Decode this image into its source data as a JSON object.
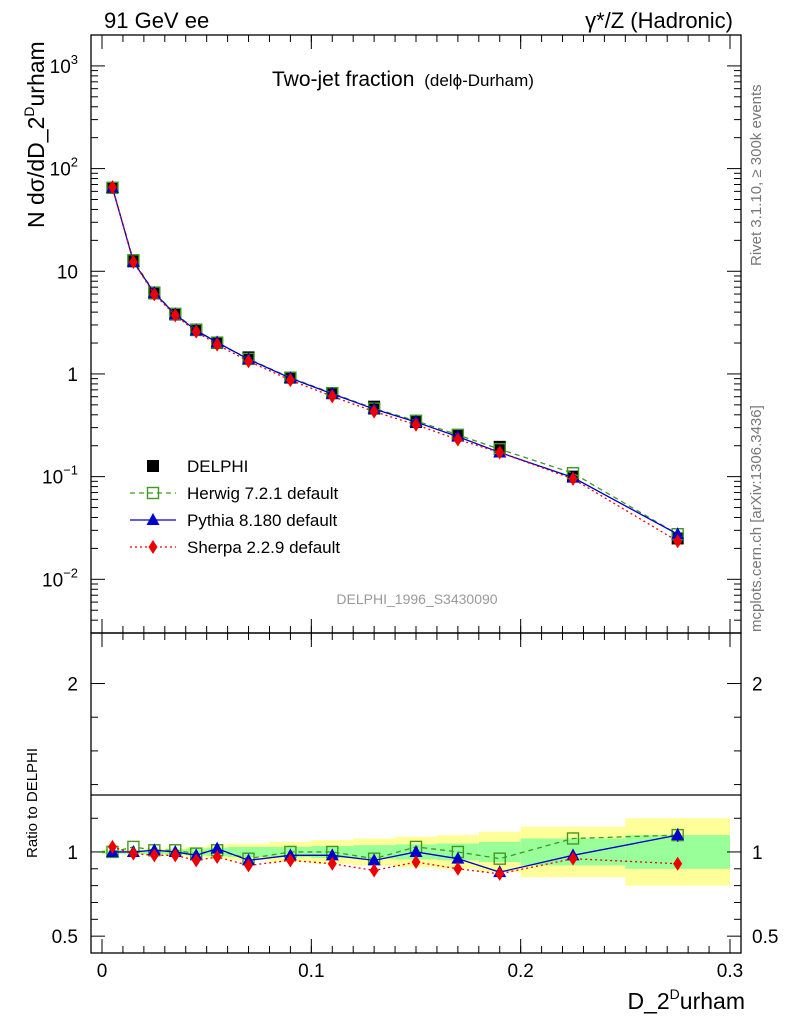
{
  "header": {
    "left": "91 GeV ee",
    "right": "γ*/Z (Hadronic)"
  },
  "side_labels": {
    "rivet": "Rivet 3.1.10, ≥ 300k events",
    "mcplots": "mcplots.cern.ch [arXiv:1306.3436]"
  },
  "chart_data": {
    "type": "line",
    "title": "Two-jet fraction",
    "title_suffix": "(delϕ-Durham)",
    "analysis_id": "DELPHI_1996_S3430090",
    "xlabel": "D_2",
    "xlabel_sup": "D",
    "xlabel_tail": "urham",
    "ylabel": "N dσ/dD_2",
    "ylabel_sup": "D",
    "ylabel_tail": "urham",
    "ratio_ylabel": "Ratio to DELPHI",
    "xlim": [
      0,
      0.3
    ],
    "ylim": [
      0.003,
      2000
    ],
    "yscale": "log",
    "ratio_ylim": [
      0.4,
      2.3
    ],
    "x_ticks": [
      "0",
      "0.1",
      "0.2",
      "0.3"
    ],
    "y_ticks": [
      {
        "value": 1000,
        "base": "10",
        "exp": "3"
      },
      {
        "value": 100,
        "base": "10",
        "exp": "2"
      },
      {
        "value": 10,
        "base": "10",
        "exp": ""
      },
      {
        "value": 1,
        "base": "1",
        "exp": ""
      },
      {
        "value": 0.1,
        "base": "10",
        "exp": "−1"
      },
      {
        "value": 0.01,
        "base": "10",
        "exp": "−2"
      }
    ],
    "ratio_ticks": [
      {
        "value": 2,
        "label": "2"
      },
      {
        "value": 1,
        "label": "1"
      },
      {
        "value": 0.5,
        "label": "0.5"
      }
    ],
    "x": [
      0.005,
      0.015,
      0.025,
      0.035,
      0.045,
      0.055,
      0.07,
      0.09,
      0.11,
      0.13,
      0.15,
      0.17,
      0.19,
      0.225,
      0.275
    ],
    "bin_edges": [
      0,
      0.01,
      0.02,
      0.03,
      0.04,
      0.05,
      0.06,
      0.08,
      0.1,
      0.12,
      0.14,
      0.16,
      0.18,
      0.2,
      0.25,
      0.3
    ],
    "band_yellow": [
      0.015,
      0.015,
      0.02,
      0.025,
      0.03,
      0.04,
      0.05,
      0.06,
      0.07,
      0.08,
      0.09,
      0.1,
      0.12,
      0.15,
      0.2
    ],
    "band_green": [
      0.01,
      0.01,
      0.012,
      0.015,
      0.02,
      0.025,
      0.03,
      0.03,
      0.035,
      0.04,
      0.045,
      0.05,
      0.06,
      0.08,
      0.1
    ],
    "series": [
      {
        "name": "DELPHI",
        "marker": "square-filled",
        "color": "#000000",
        "dash": "none",
        "values": [
          65,
          12.5,
          6.1,
          3.8,
          2.7,
          2.0,
          1.45,
          0.92,
          0.65,
          0.48,
          0.34,
          0.255,
          0.195,
          0.1,
          0.025
        ],
        "ratio": [
          1,
          1,
          1,
          1,
          1,
          1,
          1,
          1,
          1,
          1,
          1,
          1,
          1,
          1,
          1
        ]
      },
      {
        "name": "Herwig 7.2.1 default",
        "marker": "square-open",
        "color": "#3d9a1f",
        "dash": "5,4",
        "values": [
          65,
          12.8,
          6.2,
          3.85,
          2.68,
          2.02,
          1.4,
          0.92,
          0.65,
          0.46,
          0.35,
          0.255,
          0.185,
          0.108,
          0.0275
        ],
        "ratio": [
          1.0,
          1.03,
          1.01,
          1.01,
          0.99,
          1.01,
          0.96,
          1.0,
          1.0,
          0.96,
          1.03,
          1.0,
          0.96,
          1.08,
          1.1
        ]
      },
      {
        "name": "Pythia 8.180 default",
        "marker": "triangle",
        "color": "#0000cc",
        "dash": "none",
        "values": [
          65,
          12.4,
          6.15,
          3.8,
          2.65,
          2.03,
          1.39,
          0.91,
          0.64,
          0.455,
          0.34,
          0.245,
          0.172,
          0.098,
          0.0275
        ],
        "ratio": [
          1.0,
          1.0,
          1.01,
          1.0,
          0.98,
          1.02,
          0.95,
          0.98,
          0.98,
          0.95,
          1.0,
          0.96,
          0.88,
          0.98,
          1.1
        ]
      },
      {
        "name": "Sherpa 2.2.9 default",
        "marker": "diamond",
        "color": "#ee0000",
        "dash": "2,3",
        "values": [
          66,
          12.3,
          5.95,
          3.72,
          2.58,
          1.93,
          1.33,
          0.87,
          0.605,
          0.43,
          0.32,
          0.23,
          0.172,
          0.095,
          0.0235
        ],
        "ratio": [
          1.03,
          0.99,
          0.98,
          0.98,
          0.95,
          0.97,
          0.92,
          0.95,
          0.93,
          0.89,
          0.94,
          0.9,
          0.87,
          0.96,
          0.93
        ]
      }
    ]
  }
}
